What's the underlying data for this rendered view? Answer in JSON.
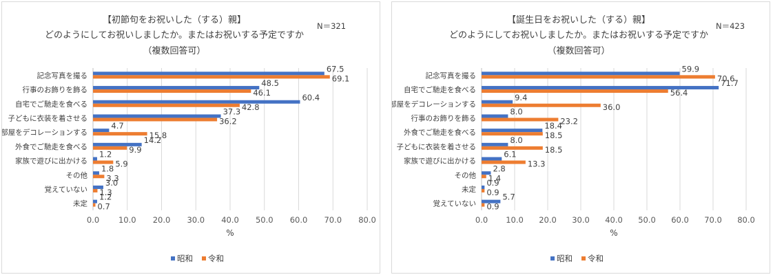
{
  "colors": {
    "showa": "#4472C4",
    "reiwa": "#ED7D31",
    "grid": "#d9d9d9",
    "axis": "#bfbfbf"
  },
  "chart_data": [
    {
      "type": "bar",
      "orientation": "horizontal",
      "title_lines": [
        "【初節句をお祝いした（する）親】",
        "どのようにしてお祝いしましたか。またはお祝いする予定ですか",
        "（複数回答可）"
      ],
      "n_label": "N＝321",
      "categories": [
        "記念写真を撮る",
        "行事のお飾りを飾る",
        "自宅でご馳走を食べる",
        "子どもに衣装を着させる",
        "部屋をデコレーションする",
        "外食でご馳走を食べる",
        "家族で遊びに出かける",
        "その他",
        "覚えていない",
        "未定"
      ],
      "series": [
        {
          "name": "昭和",
          "values": [
            67.5,
            48.5,
            60.4,
            37.3,
            4.7,
            14.2,
            1.2,
            1.8,
            3.0,
            1.2
          ]
        },
        {
          "name": "令和",
          "values": [
            69.1,
            46.1,
            42.8,
            36.2,
            15.8,
            9.9,
            5.9,
            3.3,
            1.3,
            0.7
          ]
        }
      ],
      "xlim": [
        0,
        80
      ],
      "xticks": [
        "0.0",
        "10.0",
        "20.0",
        "30.0",
        "40.0",
        "50.0",
        "60.0",
        "70.0",
        "80.0"
      ],
      "xlabel": "%",
      "legend_position": "bottom",
      "grid": true
    },
    {
      "type": "bar",
      "orientation": "horizontal",
      "title_lines": [
        "【誕生日をお祝いした（する）親】",
        "どのようにしてお祝いしましたか。またはお祝いする予定ですか",
        "（複数回答可）"
      ],
      "n_label": "N＝423",
      "categories": [
        "記念写真を撮る",
        "自宅でご馳走を食べる",
        "部屋をデコレーションする",
        "行事のお飾りを飾る",
        "外食でご馳走を食べる",
        "子どもに衣装を着させる",
        "家族で遊びに出かける",
        "その他",
        "未定",
        "覚えていない"
      ],
      "series": [
        {
          "name": "昭和",
          "values": [
            59.9,
            71.7,
            9.4,
            8.0,
            18.4,
            8.0,
            6.1,
            2.8,
            0.9,
            5.7
          ]
        },
        {
          "name": "令和",
          "values": [
            70.6,
            56.4,
            36.0,
            23.2,
            18.5,
            18.5,
            13.3,
            1.4,
            0.9,
            0.9
          ]
        }
      ],
      "xlim": [
        0,
        80
      ],
      "xticks": [
        "0.0",
        "10.0",
        "20.0",
        "30.0",
        "40.0",
        "50.0",
        "60.0",
        "70.0",
        "80.0"
      ],
      "xlabel": "%",
      "legend_position": "bottom",
      "grid": true
    }
  ]
}
